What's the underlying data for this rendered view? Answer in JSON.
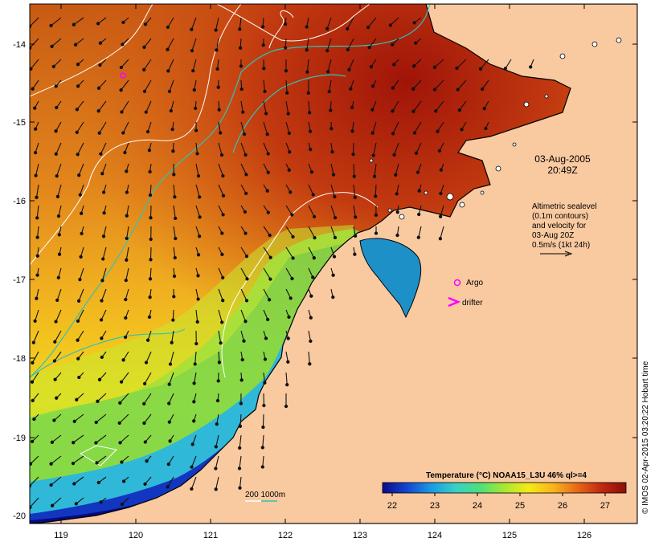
{
  "map": {
    "date": "03-Aug-2005",
    "time": "20:49Z",
    "axes": {
      "lat_ticks": [
        "-14",
        "-15",
        "-16",
        "-17",
        "-18",
        "-19",
        "-20"
      ],
      "lon_ticks": [
        "119",
        "120",
        "121",
        "122",
        "123",
        "124",
        "125",
        "126"
      ]
    },
    "legend": {
      "altimetry_lines": [
        "Altimetric sealevel",
        "(0.1m contours)",
        "and velocity for",
        "03-Aug 20Z",
        "0.5m/s (1kt 24h)"
      ],
      "argo_label": "Argo",
      "drifter_label": "drifter",
      "depth_label": "200  1000m"
    },
    "colorbar": {
      "title": "Temperature (°C) NOAA15_L3U 46% ql>=4",
      "ticks": [
        "22",
        "23",
        "24",
        "25",
        "26",
        "27"
      ]
    },
    "credit": "© IMOS 02-Apr-2015 03:20:22 Hobart time",
    "colors": {
      "land": "#f9c9a0",
      "contour": "#ffffff",
      "isobath": "#2ec4b6",
      "argo": "#ff00ff",
      "drifter": "#ff00ff",
      "sst_scale": [
        "#0a0a8c",
        "#1246d0",
        "#1a9ae6",
        "#38d0c8",
        "#4ce07a",
        "#a8e830",
        "#f4ea16",
        "#f8b41c",
        "#e86818",
        "#c02810",
        "#8a1006"
      ]
    }
  }
}
